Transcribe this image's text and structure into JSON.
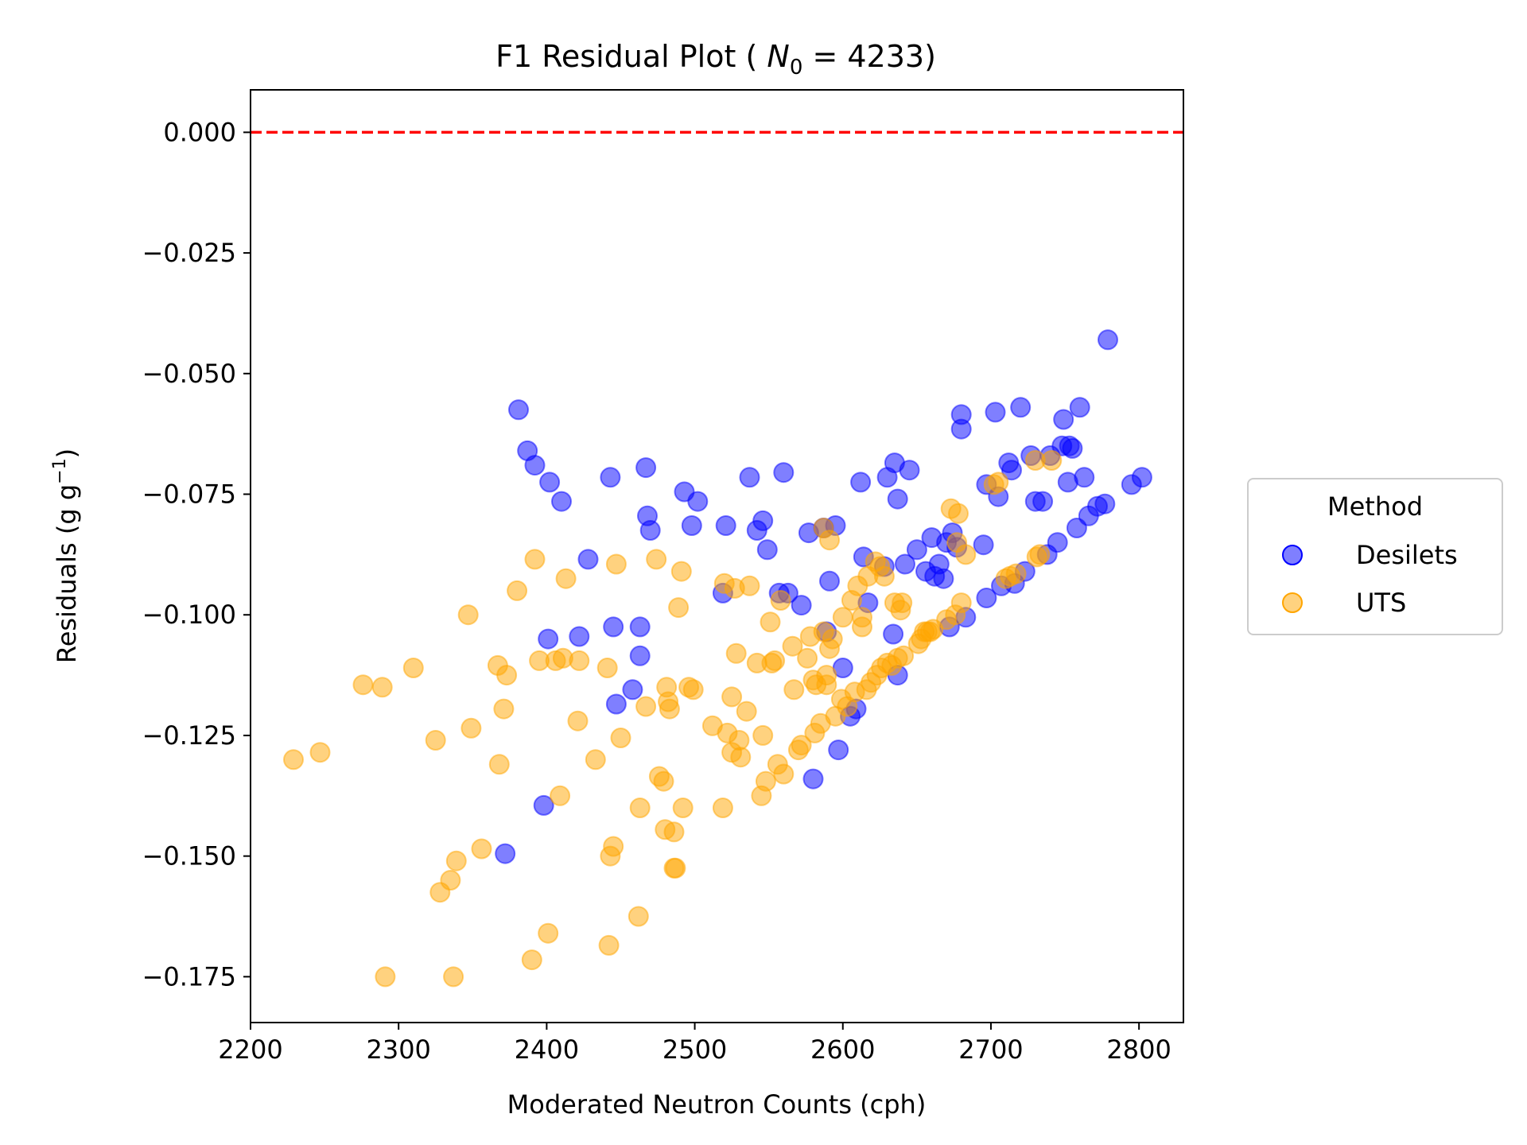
{
  "chart_data": {
    "type": "scatter",
    "title_prefix": "F1 Residual Plot ( ",
    "title_symbol": "N",
    "title_subscript": "0",
    "title_suffix": " = 4233)",
    "xlabel": "Moderated Neutron Counts (cph)",
    "ylabel_main": "Residuals (g g",
    "ylabel_sup": "−1",
    "ylabel_close": ")",
    "xlim": [
      2200,
      2830
    ],
    "ylim": [
      -0.1845,
      0.0088
    ],
    "xticks": [
      2200,
      2300,
      2400,
      2500,
      2600,
      2700,
      2800
    ],
    "yticks": [
      0.0,
      -0.025,
      -0.05,
      -0.075,
      -0.1,
      -0.125,
      -0.15,
      -0.175
    ],
    "ytick_labels": [
      "0.000",
      "−0.025",
      "−0.050",
      "−0.075",
      "−0.100",
      "−0.125",
      "−0.150",
      "−0.175"
    ],
    "reference_line": {
      "y": 0.0,
      "color": "#ff0000",
      "style": "dashed"
    },
    "legend": {
      "title": "Method",
      "placement": "outside-right"
    },
    "series": [
      {
        "name": "Desilets",
        "color": "#0000ff",
        "points": [
          [
            2381,
            -0.0575
          ],
          [
            2387,
            -0.066
          ],
          [
            2392,
            -0.069
          ],
          [
            2402,
            -0.0725
          ],
          [
            2410,
            -0.0765
          ],
          [
            2428,
            -0.0885
          ],
          [
            2443,
            -0.0715
          ],
          [
            2445,
            -0.1025
          ],
          [
            2447,
            -0.1185
          ],
          [
            2458,
            -0.1155
          ],
          [
            2463,
            -0.1025
          ],
          [
            2463,
            -0.1085
          ],
          [
            2467,
            -0.0695
          ],
          [
            2468,
            -0.0795
          ],
          [
            2470,
            -0.0825
          ],
          [
            2493,
            -0.0745
          ],
          [
            2498,
            -0.0815
          ],
          [
            2502,
            -0.0765
          ],
          [
            2519,
            -0.0955
          ],
          [
            2521,
            -0.0815
          ],
          [
            2537,
            -0.0715
          ],
          [
            2542,
            -0.0825
          ],
          [
            2546,
            -0.0805
          ],
          [
            2549,
            -0.0865
          ],
          [
            2557,
            -0.0955
          ],
          [
            2560,
            -0.0705
          ],
          [
            2563,
            -0.0955
          ],
          [
            2572,
            -0.098
          ],
          [
            2577,
            -0.083
          ],
          [
            2580,
            -0.134
          ],
          [
            2587,
            -0.082
          ],
          [
            2589,
            -0.1035
          ],
          [
            2591,
            -0.093
          ],
          [
            2595,
            -0.0815
          ],
          [
            2597,
            -0.128
          ],
          [
            2600,
            -0.111
          ],
          [
            2605,
            -0.121
          ],
          [
            2609,
            -0.1195
          ],
          [
            2612,
            -0.0725
          ],
          [
            2614,
            -0.088
          ],
          [
            2617,
            -0.0975
          ],
          [
            2628,
            -0.09
          ],
          [
            2630,
            -0.0715
          ],
          [
            2635,
            -0.0685
          ],
          [
            2634,
            -0.104
          ],
          [
            2637,
            -0.076
          ],
          [
            2637,
            -0.1125
          ],
          [
            2642,
            -0.0895
          ],
          [
            2645,
            -0.07
          ],
          [
            2650,
            -0.0865
          ],
          [
            2656,
            -0.091
          ],
          [
            2660,
            -0.084
          ],
          [
            2662,
            -0.092
          ],
          [
            2665,
            -0.0895
          ],
          [
            2668,
            -0.0925
          ],
          [
            2670,
            -0.085
          ],
          [
            2672,
            -0.1025
          ],
          [
            2674,
            -0.083
          ],
          [
            2677,
            -0.086
          ],
          [
            2680,
            -0.0585
          ],
          [
            2680,
            -0.0615
          ],
          [
            2683,
            -0.1005
          ],
          [
            2695,
            -0.0855
          ],
          [
            2697,
            -0.073
          ],
          [
            2697,
            -0.0965
          ],
          [
            2703,
            -0.058
          ],
          [
            2705,
            -0.0755
          ],
          [
            2707,
            -0.094
          ],
          [
            2712,
            -0.0685
          ],
          [
            2714,
            -0.07
          ],
          [
            2716,
            -0.0935
          ],
          [
            2720,
            -0.057
          ],
          [
            2723,
            -0.091
          ],
          [
            2727,
            -0.067
          ],
          [
            2730,
            -0.0765
          ],
          [
            2735,
            -0.0765
          ],
          [
            2738,
            -0.0875
          ],
          [
            2740,
            -0.067
          ],
          [
            2745,
            -0.085
          ],
          [
            2748,
            -0.065
          ],
          [
            2749,
            -0.0595
          ],
          [
            2752,
            -0.0725
          ],
          [
            2753,
            -0.065
          ],
          [
            2755,
            -0.0655
          ],
          [
            2758,
            -0.082
          ],
          [
            2760,
            -0.057
          ],
          [
            2763,
            -0.0715
          ],
          [
            2766,
            -0.0795
          ],
          [
            2772,
            -0.0775
          ],
          [
            2777,
            -0.077
          ],
          [
            2779,
            -0.043
          ],
          [
            2795,
            -0.073
          ],
          [
            2802,
            -0.0715
          ],
          [
            2372,
            -0.1495
          ],
          [
            2398,
            -0.1395
          ],
          [
            2401,
            -0.105
          ],
          [
            2422,
            -0.1045
          ]
        ]
      },
      {
        "name": "UTS",
        "color": "#ffa500",
        "points": [
          [
            2229,
            -0.13
          ],
          [
            2247,
            -0.1285
          ],
          [
            2276,
            -0.1145
          ],
          [
            2289,
            -0.115
          ],
          [
            2291,
            -0.175
          ],
          [
            2310,
            -0.111
          ],
          [
            2325,
            -0.126
          ],
          [
            2328,
            -0.1575
          ],
          [
            2335,
            -0.155
          ],
          [
            2337,
            -0.175
          ],
          [
            2339,
            -0.151
          ],
          [
            2347,
            -0.1
          ],
          [
            2349,
            -0.1235
          ],
          [
            2356,
            -0.1485
          ],
          [
            2367,
            -0.1105
          ],
          [
            2368,
            -0.131
          ],
          [
            2371,
            -0.1195
          ],
          [
            2373,
            -0.1125
          ],
          [
            2380,
            -0.095
          ],
          [
            2390,
            -0.1715
          ],
          [
            2392,
            -0.0885
          ],
          [
            2395,
            -0.1095
          ],
          [
            2401,
            -0.166
          ],
          [
            2406,
            -0.1095
          ],
          [
            2409,
            -0.1375
          ],
          [
            2411,
            -0.109
          ],
          [
            2413,
            -0.0925
          ],
          [
            2421,
            -0.122
          ],
          [
            2422,
            -0.1095
          ],
          [
            2433,
            -0.13
          ],
          [
            2441,
            -0.111
          ],
          [
            2442,
            -0.1685
          ],
          [
            2443,
            -0.15
          ],
          [
            2445,
            -0.148
          ],
          [
            2447,
            -0.0895
          ],
          [
            2450,
            -0.1255
          ],
          [
            2463,
            -0.14
          ],
          [
            2462,
            -0.1625
          ],
          [
            2467,
            -0.119
          ],
          [
            2474,
            -0.0885
          ],
          [
            2476,
            -0.1335
          ],
          [
            2479,
            -0.1345
          ],
          [
            2480,
            -0.1445
          ],
          [
            2481,
            -0.115
          ],
          [
            2482,
            -0.118
          ],
          [
            2483,
            -0.1195
          ],
          [
            2486,
            -0.145
          ],
          [
            2486,
            -0.1525
          ],
          [
            2487,
            -0.1525
          ],
          [
            2489,
            -0.0985
          ],
          [
            2491,
            -0.091
          ],
          [
            2492,
            -0.14
          ],
          [
            2496,
            -0.115
          ],
          [
            2499,
            -0.1155
          ],
          [
            2512,
            -0.123
          ],
          [
            2519,
            -0.14
          ],
          [
            2520,
            -0.0935
          ],
          [
            2522,
            -0.1245
          ],
          [
            2525,
            -0.1285
          ],
          [
            2525,
            -0.117
          ],
          [
            2527,
            -0.0945
          ],
          [
            2528,
            -0.108
          ],
          [
            2530,
            -0.126
          ],
          [
            2531,
            -0.1295
          ],
          [
            2535,
            -0.12
          ],
          [
            2537,
            -0.094
          ],
          [
            2542,
            -0.11
          ],
          [
            2545,
            -0.1375
          ],
          [
            2546,
            -0.125
          ],
          [
            2548,
            -0.1345
          ],
          [
            2551,
            -0.1015
          ],
          [
            2552,
            -0.11
          ],
          [
            2554,
            -0.1095
          ],
          [
            2556,
            -0.131
          ],
          [
            2558,
            -0.097
          ],
          [
            2560,
            -0.133
          ],
          [
            2566,
            -0.1065
          ],
          [
            2567,
            -0.1155
          ],
          [
            2570,
            -0.128
          ],
          [
            2572,
            -0.127
          ],
          [
            2576,
            -0.109
          ],
          [
            2578,
            -0.1045
          ],
          [
            2580,
            -0.1135
          ],
          [
            2581,
            -0.1245
          ],
          [
            2582,
            -0.1145
          ],
          [
            2585,
            -0.1225
          ],
          [
            2587,
            -0.1035
          ],
          [
            2587,
            -0.082
          ],
          [
            2589,
            -0.1125
          ],
          [
            2589,
            -0.1145
          ],
          [
            2591,
            -0.0845
          ],
          [
            2591,
            -0.107
          ],
          [
            2593,
            -0.105
          ],
          [
            2595,
            -0.121
          ],
          [
            2599,
            -0.1175
          ],
          [
            2600,
            -0.1005
          ],
          [
            2603,
            -0.119
          ],
          [
            2606,
            -0.097
          ],
          [
            2608,
            -0.116
          ],
          [
            2610,
            -0.094
          ],
          [
            2613,
            -0.1025
          ],
          [
            2613,
            -0.1005
          ],
          [
            2616,
            -0.1155
          ],
          [
            2617,
            -0.092
          ],
          [
            2619,
            -0.114
          ],
          [
            2622,
            -0.089
          ],
          [
            2623,
            -0.1125
          ],
          [
            2625,
            -0.09
          ],
          [
            2626,
            -0.111
          ],
          [
            2628,
            -0.092
          ],
          [
            2630,
            -0.11
          ],
          [
            2633,
            -0.1105
          ],
          [
            2635,
            -0.0975
          ],
          [
            2637,
            -0.109
          ],
          [
            2639,
            -0.099
          ],
          [
            2640,
            -0.0975
          ],
          [
            2641,
            -0.1085
          ],
          [
            2651,
            -0.106
          ],
          [
            2653,
            -0.105
          ],
          [
            2655,
            -0.1035
          ],
          [
            2657,
            -0.1035
          ],
          [
            2659,
            -0.1035
          ],
          [
            2661,
            -0.103
          ],
          [
            2670,
            -0.101
          ],
          [
            2673,
            -0.078
          ],
          [
            2676,
            -0.1
          ],
          [
            2677,
            -0.085
          ],
          [
            2678,
            -0.079
          ],
          [
            2680,
            -0.0975
          ],
          [
            2683,
            -0.0875
          ],
          [
            2702,
            -0.073
          ],
          [
            2705,
            -0.0725
          ],
          [
            2710,
            -0.0925
          ],
          [
            2713,
            -0.092
          ],
          [
            2717,
            -0.0915
          ],
          [
            2730,
            -0.068
          ],
          [
            2731,
            -0.088
          ],
          [
            2733,
            -0.0875
          ],
          [
            2741,
            -0.068
          ]
        ]
      }
    ]
  }
}
